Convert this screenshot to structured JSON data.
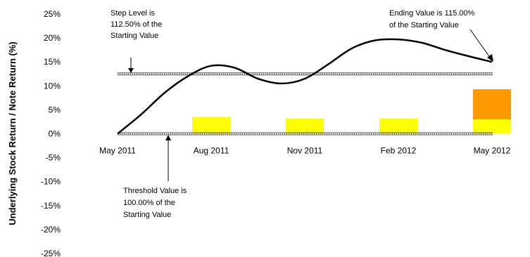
{
  "chart_data": {
    "type": "line",
    "ylabel": "Underlying Stock Return / Note Return (%)",
    "ylim": [
      -25,
      25
    ],
    "y_ticks": [
      "25%",
      "20%",
      "15%",
      "10%",
      "5%",
      "0%",
      "-5%",
      "-10%",
      "-15%",
      "-20%",
      "-25%"
    ],
    "categories": [
      "May 2011",
      "Aug 2011",
      "Nov 2011",
      "Feb 2012",
      "May 2012"
    ],
    "series": [
      {
        "color": "#000000",
        "x": [
          0,
          0.25,
          0.5,
          0.75,
          1,
          1.25,
          1.5,
          1.75,
          2,
          2.25,
          2.5,
          2.75,
          3,
          3.25,
          3.5,
          3.75,
          4
        ],
        "values": [
          0,
          4,
          8.5,
          12,
          14.2,
          13.8,
          11.5,
          10.5,
          11.5,
          14.5,
          17.8,
          19.5,
          19.7,
          19,
          17.5,
          16.2,
          15
        ]
      }
    ],
    "bars": [
      {
        "category": "Aug 2011",
        "value": 3.5,
        "color": "#ffff00"
      },
      {
        "category": "Nov 2011",
        "value": 3.2,
        "color": "#ffff00"
      },
      {
        "category": "Feb 2012",
        "value": 3.2,
        "color": "#ffff00"
      },
      {
        "category": "May 2012",
        "value": 3.0,
        "color": "#ffff00"
      },
      {
        "category": "May 2012",
        "value": 6.3,
        "color": "#ff9900",
        "stacked": true
      }
    ],
    "reference_lines": [
      12.5,
      0
    ],
    "annotations": {
      "step": [
        "Step Level is",
        "112.50% of the",
        "Starting Value"
      ],
      "ending": [
        "Ending Value is 115.00%",
        "of the Starting Value"
      ],
      "threshold": [
        "Threshold Value is",
        "100.00% of the",
        "Starting Value"
      ]
    }
  }
}
